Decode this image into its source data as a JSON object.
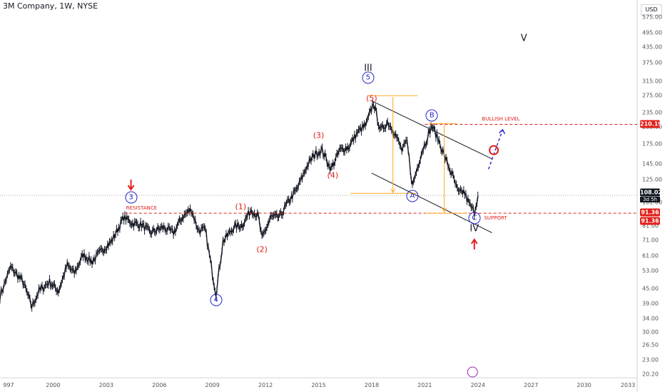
{
  "header": {
    "symbol": "3M Company, 1W, NYSE",
    "currency": "USD"
  },
  "chart_data": {
    "type": "line",
    "title": "3M Company, 1W, NYSE",
    "y_scale": "log",
    "ylim": [
      19.5,
      640
    ],
    "xlim": [
      1997,
      2033
    ],
    "y_ticks": [
      "575.00",
      "495.00",
      "435.00",
      "375.00",
      "315.00",
      "275.00",
      "235.00",
      "205.00",
      "175.00",
      "145.00",
      "125.00",
      "101.00",
      "81.00",
      "71.00",
      "61.00",
      "53.00",
      "45.00",
      "39.00",
      "34.00",
      "30.00",
      "26.50",
      "23.00",
      "20.20"
    ],
    "x_ticks": [
      "997",
      "2000",
      "2003",
      "2006",
      "2009",
      "2012",
      "2015",
      "2018",
      "2021",
      "2024",
      "2027",
      "2030",
      "2033"
    ],
    "price_anchors": [
      {
        "x": 1997.0,
        "y": 42
      },
      {
        "x": 1997.6,
        "y": 55
      },
      {
        "x": 1998.3,
        "y": 48
      },
      {
        "x": 1998.8,
        "y": 38
      },
      {
        "x": 1999.2,
        "y": 44
      },
      {
        "x": 1999.8,
        "y": 48
      },
      {
        "x": 2000.3,
        "y": 44
      },
      {
        "x": 2000.8,
        "y": 56
      },
      {
        "x": 2001.2,
        "y": 52
      },
      {
        "x": 2001.7,
        "y": 62
      },
      {
        "x": 2002.2,
        "y": 58
      },
      {
        "x": 2002.8,
        "y": 65
      },
      {
        "x": 2003.3,
        "y": 70
      },
      {
        "x": 2004.0,
        "y": 88
      },
      {
        "x": 2004.5,
        "y": 83
      },
      {
        "x": 2005.0,
        "y": 82
      },
      {
        "x": 2005.5,
        "y": 76
      },
      {
        "x": 2006.2,
        "y": 80
      },
      {
        "x": 2006.8,
        "y": 76
      },
      {
        "x": 2007.3,
        "y": 88
      },
      {
        "x": 2007.8,
        "y": 95
      },
      {
        "x": 2008.2,
        "y": 78
      },
      {
        "x": 2008.6,
        "y": 78
      },
      {
        "x": 2009.0,
        "y": 52
      },
      {
        "x": 2009.2,
        "y": 43
      },
      {
        "x": 2009.6,
        "y": 70
      },
      {
        "x": 2010.2,
        "y": 80
      },
      {
        "x": 2010.7,
        "y": 82
      },
      {
        "x": 2011.2,
        "y": 95
      },
      {
        "x": 2011.6,
        "y": 88
      },
      {
        "x": 2011.8,
        "y": 72
      },
      {
        "x": 2012.3,
        "y": 88
      },
      {
        "x": 2012.8,
        "y": 88
      },
      {
        "x": 2013.3,
        "y": 102
      },
      {
        "x": 2013.8,
        "y": 115
      },
      {
        "x": 2014.3,
        "y": 140
      },
      {
        "x": 2014.8,
        "y": 160
      },
      {
        "x": 2015.2,
        "y": 165
      },
      {
        "x": 2015.7,
        "y": 138
      },
      {
        "x": 2016.2,
        "y": 165
      },
      {
        "x": 2016.7,
        "y": 170
      },
      {
        "x": 2017.2,
        "y": 195
      },
      {
        "x": 2017.7,
        "y": 210
      },
      {
        "x": 2018.1,
        "y": 258
      },
      {
        "x": 2018.5,
        "y": 198
      },
      {
        "x": 2018.9,
        "y": 215
      },
      {
        "x": 2019.3,
        "y": 195
      },
      {
        "x": 2019.7,
        "y": 165
      },
      {
        "x": 2020.0,
        "y": 178
      },
      {
        "x": 2020.3,
        "y": 118
      },
      {
        "x": 2020.8,
        "y": 160
      },
      {
        "x": 2021.2,
        "y": 190
      },
      {
        "x": 2021.4,
        "y": 208
      },
      {
        "x": 2021.8,
        "y": 180
      },
      {
        "x": 2022.2,
        "y": 150
      },
      {
        "x": 2022.6,
        "y": 128
      },
      {
        "x": 2022.9,
        "y": 110
      },
      {
        "x": 2023.2,
        "y": 112
      },
      {
        "x": 2023.5,
        "y": 100
      },
      {
        "x": 2023.8,
        "y": 92
      },
      {
        "x": 2024.0,
        "y": 108
      }
    ],
    "levels": [
      {
        "name": "BULLISH LEVEL",
        "value": 210.19,
        "label": "210.19"
      },
      {
        "name": "RESISTANCE",
        "value": 91.36,
        "label": "91.36"
      },
      {
        "name": "SUPPORT",
        "value": 91.36,
        "label": "91.36"
      }
    ],
    "last_price": {
      "value": 108.02,
      "label": "108.02",
      "countdown": "3d 5h"
    },
    "annotations": [
      {
        "text": "(1)",
        "x": 2010.6,
        "y": 97,
        "color": "red"
      },
      {
        "text": "(2)",
        "x": 2011.8,
        "y": 65,
        "color": "red"
      },
      {
        "text": "(3)",
        "x": 2015.0,
        "y": 190,
        "color": "red"
      },
      {
        "text": "(4)",
        "x": 2015.8,
        "y": 130,
        "color": "red"
      },
      {
        "text": "(5)",
        "x": 2018.0,
        "y": 268,
        "color": "red"
      },
      {
        "text": "III",
        "x": 2017.8,
        "y": 355,
        "color": "black"
      },
      {
        "text": "IV",
        "x": 2023.8,
        "y": 79,
        "color": "black"
      },
      {
        "text": "V",
        "x": 2026.6,
        "y": 470,
        "color": "black"
      }
    ],
    "circled_labels": [
      {
        "text": "3",
        "x": 2004.4,
        "y": 106
      },
      {
        "text": "4",
        "x": 2009.2,
        "y": 40.5
      },
      {
        "text": "5",
        "x": 2017.8,
        "y": 325
      },
      {
        "text": "A",
        "x": 2020.3,
        "y": 107
      },
      {
        "text": "B",
        "x": 2021.4,
        "y": 228
      },
      {
        "text": "C",
        "x": 2023.8,
        "y": 87
      }
    ],
    "level_labels": {
      "resistance": "RESISTANCE",
      "support": "SUPPORT",
      "bullish": "BULLISH LEVEL"
    },
    "colors": {
      "price": "#131722",
      "red": "#e0201b",
      "blue": "#2727c9",
      "orange": "#ffa726",
      "grid": "#d1d4dc"
    }
  }
}
